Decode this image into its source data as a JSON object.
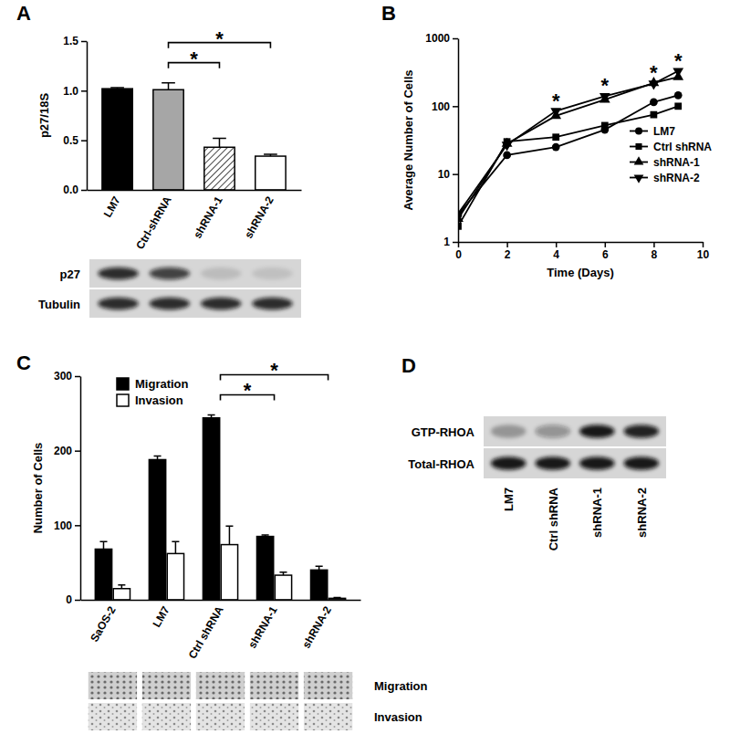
{
  "chart_data": [
    {
      "panel": "A",
      "type": "bar",
      "y_label": "p27/18S",
      "categories": [
        "LM7",
        "Ctrl-shRNA",
        "shRNA-1",
        "shRNA-2"
      ],
      "values": [
        1.02,
        1.01,
        0.43,
        0.34
      ],
      "errors": [
        0.01,
        0.07,
        0.09,
        0.02
      ],
      "colors": [
        "#000000",
        "#a6a6a6",
        "#ffffff",
        "#ffffff"
      ],
      "ylim": [
        0,
        1.5
      ],
      "yticks": [
        {
          "value": 0,
          "label": "0.0"
        },
        {
          "value": 0.5,
          "label": "0.5"
        },
        {
          "value": 1,
          "label": "1.0"
        },
        {
          "value": 1.5,
          "label": "1.5"
        }
      ],
      "annotations": [
        {
          "text": "*",
          "from": 1,
          "to": 2
        },
        {
          "text": "*",
          "from": 1,
          "to": 3
        }
      ]
    },
    {
      "panel": "B",
      "type": "line",
      "x_label": "Time (Days)",
      "y_label": "Average Number of Cells",
      "x": [
        0,
        2,
        4,
        6,
        8,
        9
      ],
      "series": [
        {
          "name": "LM7",
          "color": "#000000",
          "marker": "circle",
          "values": [
            2.5,
            19,
            25,
            45,
            115,
            145
          ]
        },
        {
          "name": "Ctrl shRNA",
          "color": "#000000",
          "marker": "square",
          "values": [
            1.7,
            30,
            35,
            52,
            75,
            100
          ]
        },
        {
          "name": "shRNA-1",
          "color": "#000000",
          "marker": "triangle",
          "values": [
            2.2,
            28,
            72,
            125,
            220,
            270
          ]
        },
        {
          "name": "shRNA-2",
          "color": "#000000",
          "marker": "triangle-down",
          "values": [
            2.6,
            27,
            85,
            140,
            215,
            330
          ]
        }
      ],
      "xlim": [
        0,
        10
      ],
      "xticks": [
        0,
        2,
        4,
        6,
        8,
        10
      ],
      "ylim": [
        1,
        1000
      ],
      "yticks": [
        1,
        10,
        100,
        1000
      ],
      "log": "y",
      "legend": "right",
      "annotations": [
        {
          "text": "*",
          "x": 4
        },
        {
          "text": "*",
          "x": 6
        },
        {
          "text": "*",
          "x": 8
        },
        {
          "text": "*",
          "x": 9
        }
      ]
    },
    {
      "panel": "C",
      "type": "bar",
      "y_label": "Number of Cells",
      "categories": [
        "SaOS-2",
        "LM7",
        "Ctrl shRNA",
        "shRNA-1",
        "shRNA-2"
      ],
      "series": [
        {
          "name": "Migration",
          "color": "#000000",
          "values": [
            68,
            188,
            244,
            85,
            40
          ],
          "errors": [
            10,
            5,
            4,
            2,
            5
          ]
        },
        {
          "name": "Invasion",
          "color": "#ffffff",
          "values": [
            15,
            62,
            74,
            33,
            2
          ],
          "errors": [
            5,
            16,
            25,
            4,
            1
          ]
        }
      ],
      "ylim": [
        0,
        300
      ],
      "yticks": [
        0,
        100,
        200,
        300
      ],
      "legend": "top-left",
      "annotations": [
        {
          "text": "*",
          "from": 2,
          "to": 3
        },
        {
          "text": "*",
          "from": 2,
          "to": 4
        }
      ]
    }
  ],
  "blots": [
    {
      "rows": [
        {
          "label": "p27",
          "intensity": [
            0.85,
            0.75,
            0.12,
            0.1
          ]
        },
        {
          "label": "Tubulin",
          "intensity": [
            0.85,
            0.85,
            0.85,
            0.85
          ]
        }
      ]
    },
    {
      "panel": "D",
      "lanes": [
        "LM7",
        "Ctrl shRNA",
        "shRNA-1",
        "shRNA-2"
      ],
      "rows": [
        {
          "label": "GTP-RHOA",
          "intensity": [
            0.3,
            0.35,
            0.95,
            0.9
          ]
        },
        {
          "label": "Total-RHOA",
          "intensity": [
            0.95,
            0.95,
            0.95,
            0.95
          ]
        }
      ]
    }
  ],
  "images": {
    "rows": [
      "Migration",
      "Invasion"
    ]
  }
}
